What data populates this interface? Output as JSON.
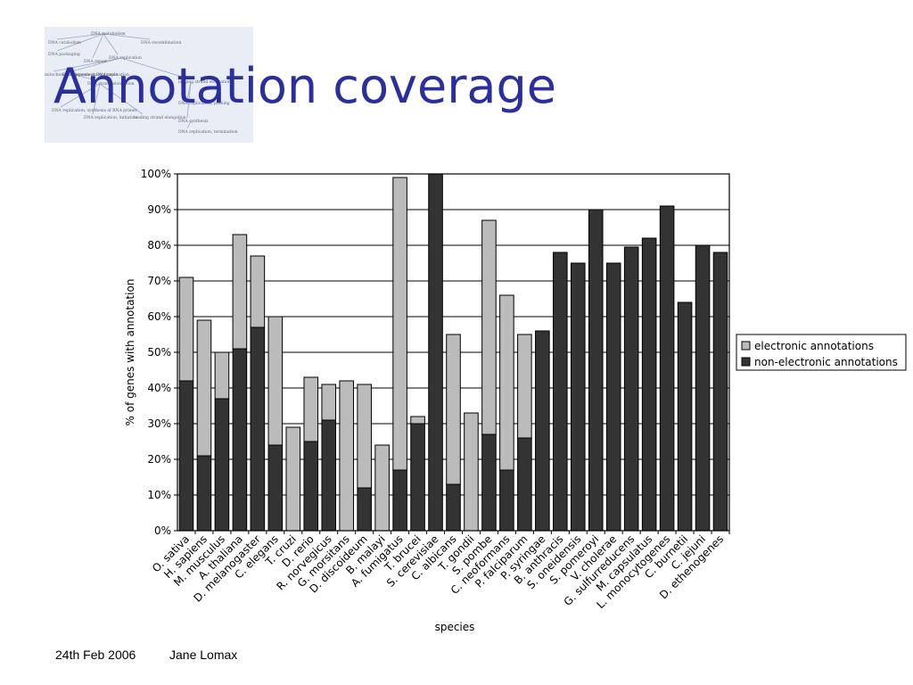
{
  "slide": {
    "title": "Annotation coverage",
    "footer_date": "24th Feb 2006",
    "footer_author": "Jane Lomax"
  },
  "logo": {
    "labels": [
      "DNA metabolism",
      "DNA catabolism",
      "DNA recombination",
      "DNA packaging",
      "DNA repair",
      "DNA replication",
      "mitochondrial genome maintenance",
      "DNA-dependent DNA replication",
      "DNA strand elongation",
      "DNA replication, synthesis of RNA primer",
      "DNA replication, initiation",
      "leading strand elongation",
      "lagging strand elongation",
      "DNA replication, priming",
      "DNA synthesis",
      "DNA replication, termination"
    ]
  },
  "chart_data": {
    "type": "bar",
    "stacked": true,
    "categories": [
      "O. sativa",
      "H. sapiens",
      "M. musculus",
      "A. thaliana",
      "D. melanogaster",
      "C. elegans",
      "T. cruzi",
      "D. rerio",
      "R. norvegicus",
      "G. morsitans",
      "D. discoideum",
      "B. malayi",
      "A. fumigatus",
      "T. brucei",
      "S. cerevisiae",
      "C. albicans",
      "T. gondii",
      "S. pombe",
      "C. neoformans",
      "P. falciparum",
      "P. syringae",
      "B. anthracis",
      "S. oneidensis",
      "S. pomeroyi",
      "V. cholerae",
      "G. sulfurreducens",
      "M. capsulatus",
      "L. monocytogenes",
      "C. burnetii",
      "C. jejuni",
      "D. ethenogenes"
    ],
    "series": [
      {
        "name": "non-electronic annotations",
        "color": "#333333",
        "values": [
          42,
          21,
          37,
          51,
          57,
          24,
          0,
          25,
          31,
          0,
          12,
          0,
          17,
          30,
          100,
          13,
          0,
          27,
          17,
          26,
          56,
          78,
          75,
          90,
          75,
          79.5,
          82,
          91,
          64,
          80,
          78
        ]
      },
      {
        "name": "electronic annotations",
        "color": "#bbbbbb",
        "values": [
          29,
          38,
          13,
          32,
          20,
          36,
          29,
          18,
          10,
          42,
          29,
          24,
          82,
          2,
          0,
          42,
          33,
          60,
          49,
          29,
          0,
          0,
          0,
          0,
          0,
          0,
          0,
          0,
          0,
          0,
          0
        ]
      }
    ],
    "legend_order": [
      "electronic annotations",
      "non-electronic annotations"
    ],
    "ylim": [
      0,
      100
    ],
    "yticks": [
      "0%",
      "10%",
      "20%",
      "30%",
      "40%",
      "50%",
      "60%",
      "70%",
      "80%",
      "90%",
      "100%"
    ],
    "xlabel": "species",
    "ylabel": "% of genes with annotation",
    "grid": true,
    "legend_position": "right"
  }
}
